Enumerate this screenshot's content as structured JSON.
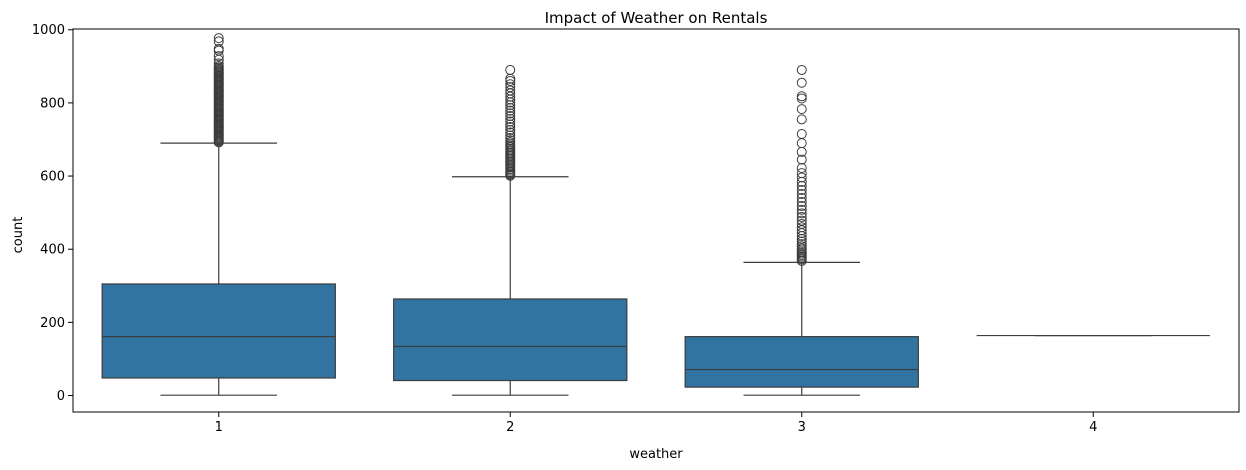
{
  "chart_data": {
    "type": "box",
    "title": "Impact of Weather on Rentals",
    "xlabel": "weather",
    "ylabel": "count",
    "ylim": [
      -45,
      1002
    ],
    "yticks": [
      0,
      200,
      400,
      600,
      800,
      1000
    ],
    "grid": false,
    "legend": "none",
    "box_color": "#3274a1",
    "line_color": "#3d3d3d",
    "categories": [
      "1",
      "2",
      "3",
      "4"
    ],
    "boxes": [
      {
        "category": "1",
        "min": 1,
        "q1": 48,
        "median": 161,
        "q3": 305,
        "max": 690,
        "outliers": [
          692,
          695,
          698,
          701,
          704,
          707,
          710,
          713,
          716,
          719,
          722,
          725,
          728,
          731,
          734,
          737,
          740,
          743,
          746,
          749,
          752,
          755,
          758,
          761,
          764,
          767,
          770,
          773,
          776,
          779,
          782,
          785,
          788,
          791,
          794,
          797,
          800,
          803,
          806,
          809,
          812,
          815,
          818,
          821,
          824,
          827,
          830,
          833,
          836,
          839,
          842,
          845,
          848,
          851,
          854,
          857,
          860,
          863,
          866,
          869,
          872,
          875,
          878,
          881,
          884,
          887,
          890,
          893,
          897,
          901,
          908,
          918,
          928,
          943,
          948,
          968,
          977
        ]
      },
      {
        "category": "2",
        "min": 1,
        "q1": 41,
        "median": 134,
        "q3": 264,
        "max": 598,
        "outliers": [
          601,
          604,
          607,
          611,
          615,
          619,
          623,
          627,
          631,
          635,
          639,
          643,
          647,
          651,
          655,
          659,
          663,
          667,
          671,
          675,
          679,
          683,
          687,
          692,
          698,
          704,
          711,
          719,
          726,
          734,
          741,
          749,
          756,
          764,
          771,
          779,
          786,
          794,
          801,
          809,
          817,
          826,
          834,
          843,
          851,
          860,
          866,
          890
        ]
      },
      {
        "category": "3",
        "min": 1,
        "q1": 23,
        "median": 71,
        "q3": 161,
        "max": 364,
        "outliers": [
          368,
          372,
          376,
          380,
          384,
          388,
          392,
          397,
          402,
          408,
          414,
          421,
          428,
          436,
          444,
          452,
          460,
          469,
          478,
          488,
          498,
          508,
          518,
          529,
          540,
          551,
          562,
          573,
          584,
          596,
          608,
          622,
          645,
          666,
          690,
          715,
          755,
          783,
          812,
          818,
          855,
          890
        ]
      },
      {
        "category": "4",
        "min": 164,
        "q1": 164,
        "median": 164,
        "q3": 164,
        "max": 164,
        "outliers": []
      }
    ]
  }
}
